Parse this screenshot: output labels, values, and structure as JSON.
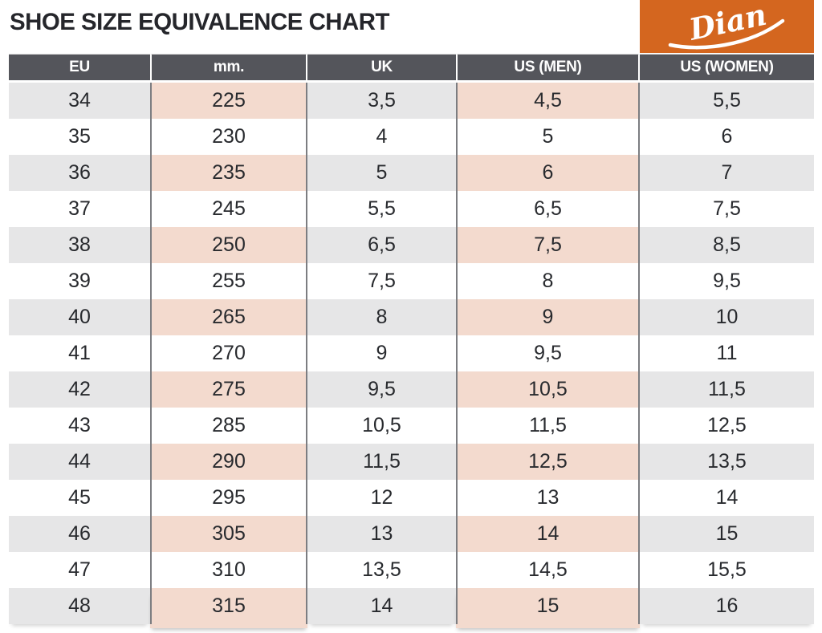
{
  "page_title": "SHOE SIZE EQUIVALENCE CHART",
  "logo": {
    "text": "Dian",
    "background": "#D4661F",
    "text_color": "#FFFFFF"
  },
  "colors": {
    "header_bg": "#54555B",
    "header_text": "#FFFFFF",
    "row_shaded_gray": "#E6E6E7",
    "row_highlight_pink": "#F3DACE",
    "row_white": "#FFFFFF",
    "column_divider": "#7C7D81",
    "body_text": "#282A2E",
    "accent_orange": "#D4661F"
  },
  "chart_data": {
    "type": "table",
    "title": "SHOE SIZE EQUIVALENCE CHART",
    "columns": [
      "EU",
      "mm.",
      "UK",
      "US (MEN)",
      "US (WOMEN)"
    ],
    "rows": [
      [
        "34",
        "225",
        "3,5",
        "4,5",
        "5,5"
      ],
      [
        "35",
        "230",
        "4",
        "5",
        "6"
      ],
      [
        "36",
        "235",
        "5",
        "6",
        "7"
      ],
      [
        "37",
        "245",
        "5,5",
        "6,5",
        "7,5"
      ],
      [
        "38",
        "250",
        "6,5",
        "7,5",
        "8,5"
      ],
      [
        "39",
        "255",
        "7,5",
        "8",
        "9,5"
      ],
      [
        "40",
        "265",
        "8",
        "9",
        "10"
      ],
      [
        "41",
        "270",
        "9",
        "9,5",
        "11"
      ],
      [
        "42",
        "275",
        "9,5",
        "10,5",
        "11,5"
      ],
      [
        "43",
        "285",
        "10,5",
        "11,5",
        "12,5"
      ],
      [
        "44",
        "290",
        "11,5",
        "12,5",
        "13,5"
      ],
      [
        "45",
        "295",
        "12",
        "13",
        "14"
      ],
      [
        "46",
        "305",
        "13",
        "14",
        "15"
      ],
      [
        "47",
        "310",
        "13,5",
        "14,5",
        "15,5"
      ],
      [
        "48",
        "315",
        "14",
        "15",
        "16"
      ]
    ],
    "highlighted_columns": [
      "mm.",
      "US (MEN)"
    ],
    "row_shading": "alternating, starting shaded at EU 34",
    "decimal_separator": ","
  }
}
